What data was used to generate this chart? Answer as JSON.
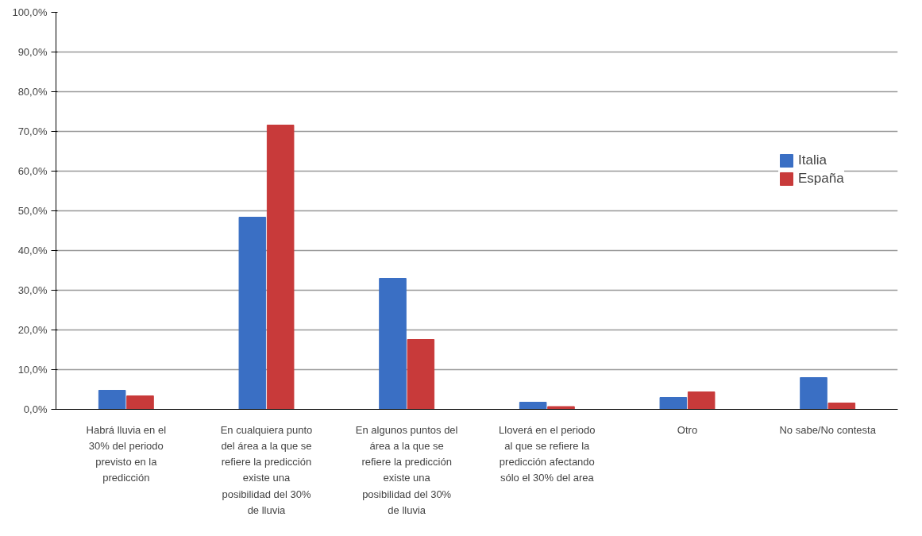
{
  "chart_data": {
    "type": "bar",
    "categories": [
      "Habrá lluvia en el 30% del periodo previsto en la predicción",
      "En cualquiera punto del área a la que se refiere la predicción existe una posibilidad del 30% de lluvia",
      "En algunos puntos del área a la que se refiere la predicción existe una posibilidad del 30% de lluvia",
      "Lloverá en el periodo al que se refiere la predicción afectando sólo el 30% del area",
      "Otro",
      "No sabe/No contesta"
    ],
    "series": [
      {
        "name": "Italia",
        "color": "#3a6fc4",
        "values": [
          4.8,
          48.4,
          33.0,
          1.8,
          3.0,
          8.0
        ]
      },
      {
        "name": "España",
        "color": "#c83a3a",
        "values": [
          3.4,
          71.6,
          17.6,
          0.7,
          4.4,
          1.6
        ]
      }
    ],
    "ylim": [
      0,
      100
    ],
    "yticks": [
      {
        "value": 0,
        "label": "0,0%"
      },
      {
        "value": 10,
        "label": "10,0%"
      },
      {
        "value": 20,
        "label": "20,0%"
      },
      {
        "value": 30,
        "label": "30,0%"
      },
      {
        "value": 40,
        "label": "40,0%"
      },
      {
        "value": 50,
        "label": "50,0%"
      },
      {
        "value": 60,
        "label": "60,0%"
      },
      {
        "value": 70,
        "label": "70,0%"
      },
      {
        "value": 80,
        "label": "80,0%"
      },
      {
        "value": 90,
        "label": "90,0%"
      },
      {
        "value": 100,
        "label": "100,0%"
      }
    ],
    "grid": "y",
    "legend": "right"
  }
}
